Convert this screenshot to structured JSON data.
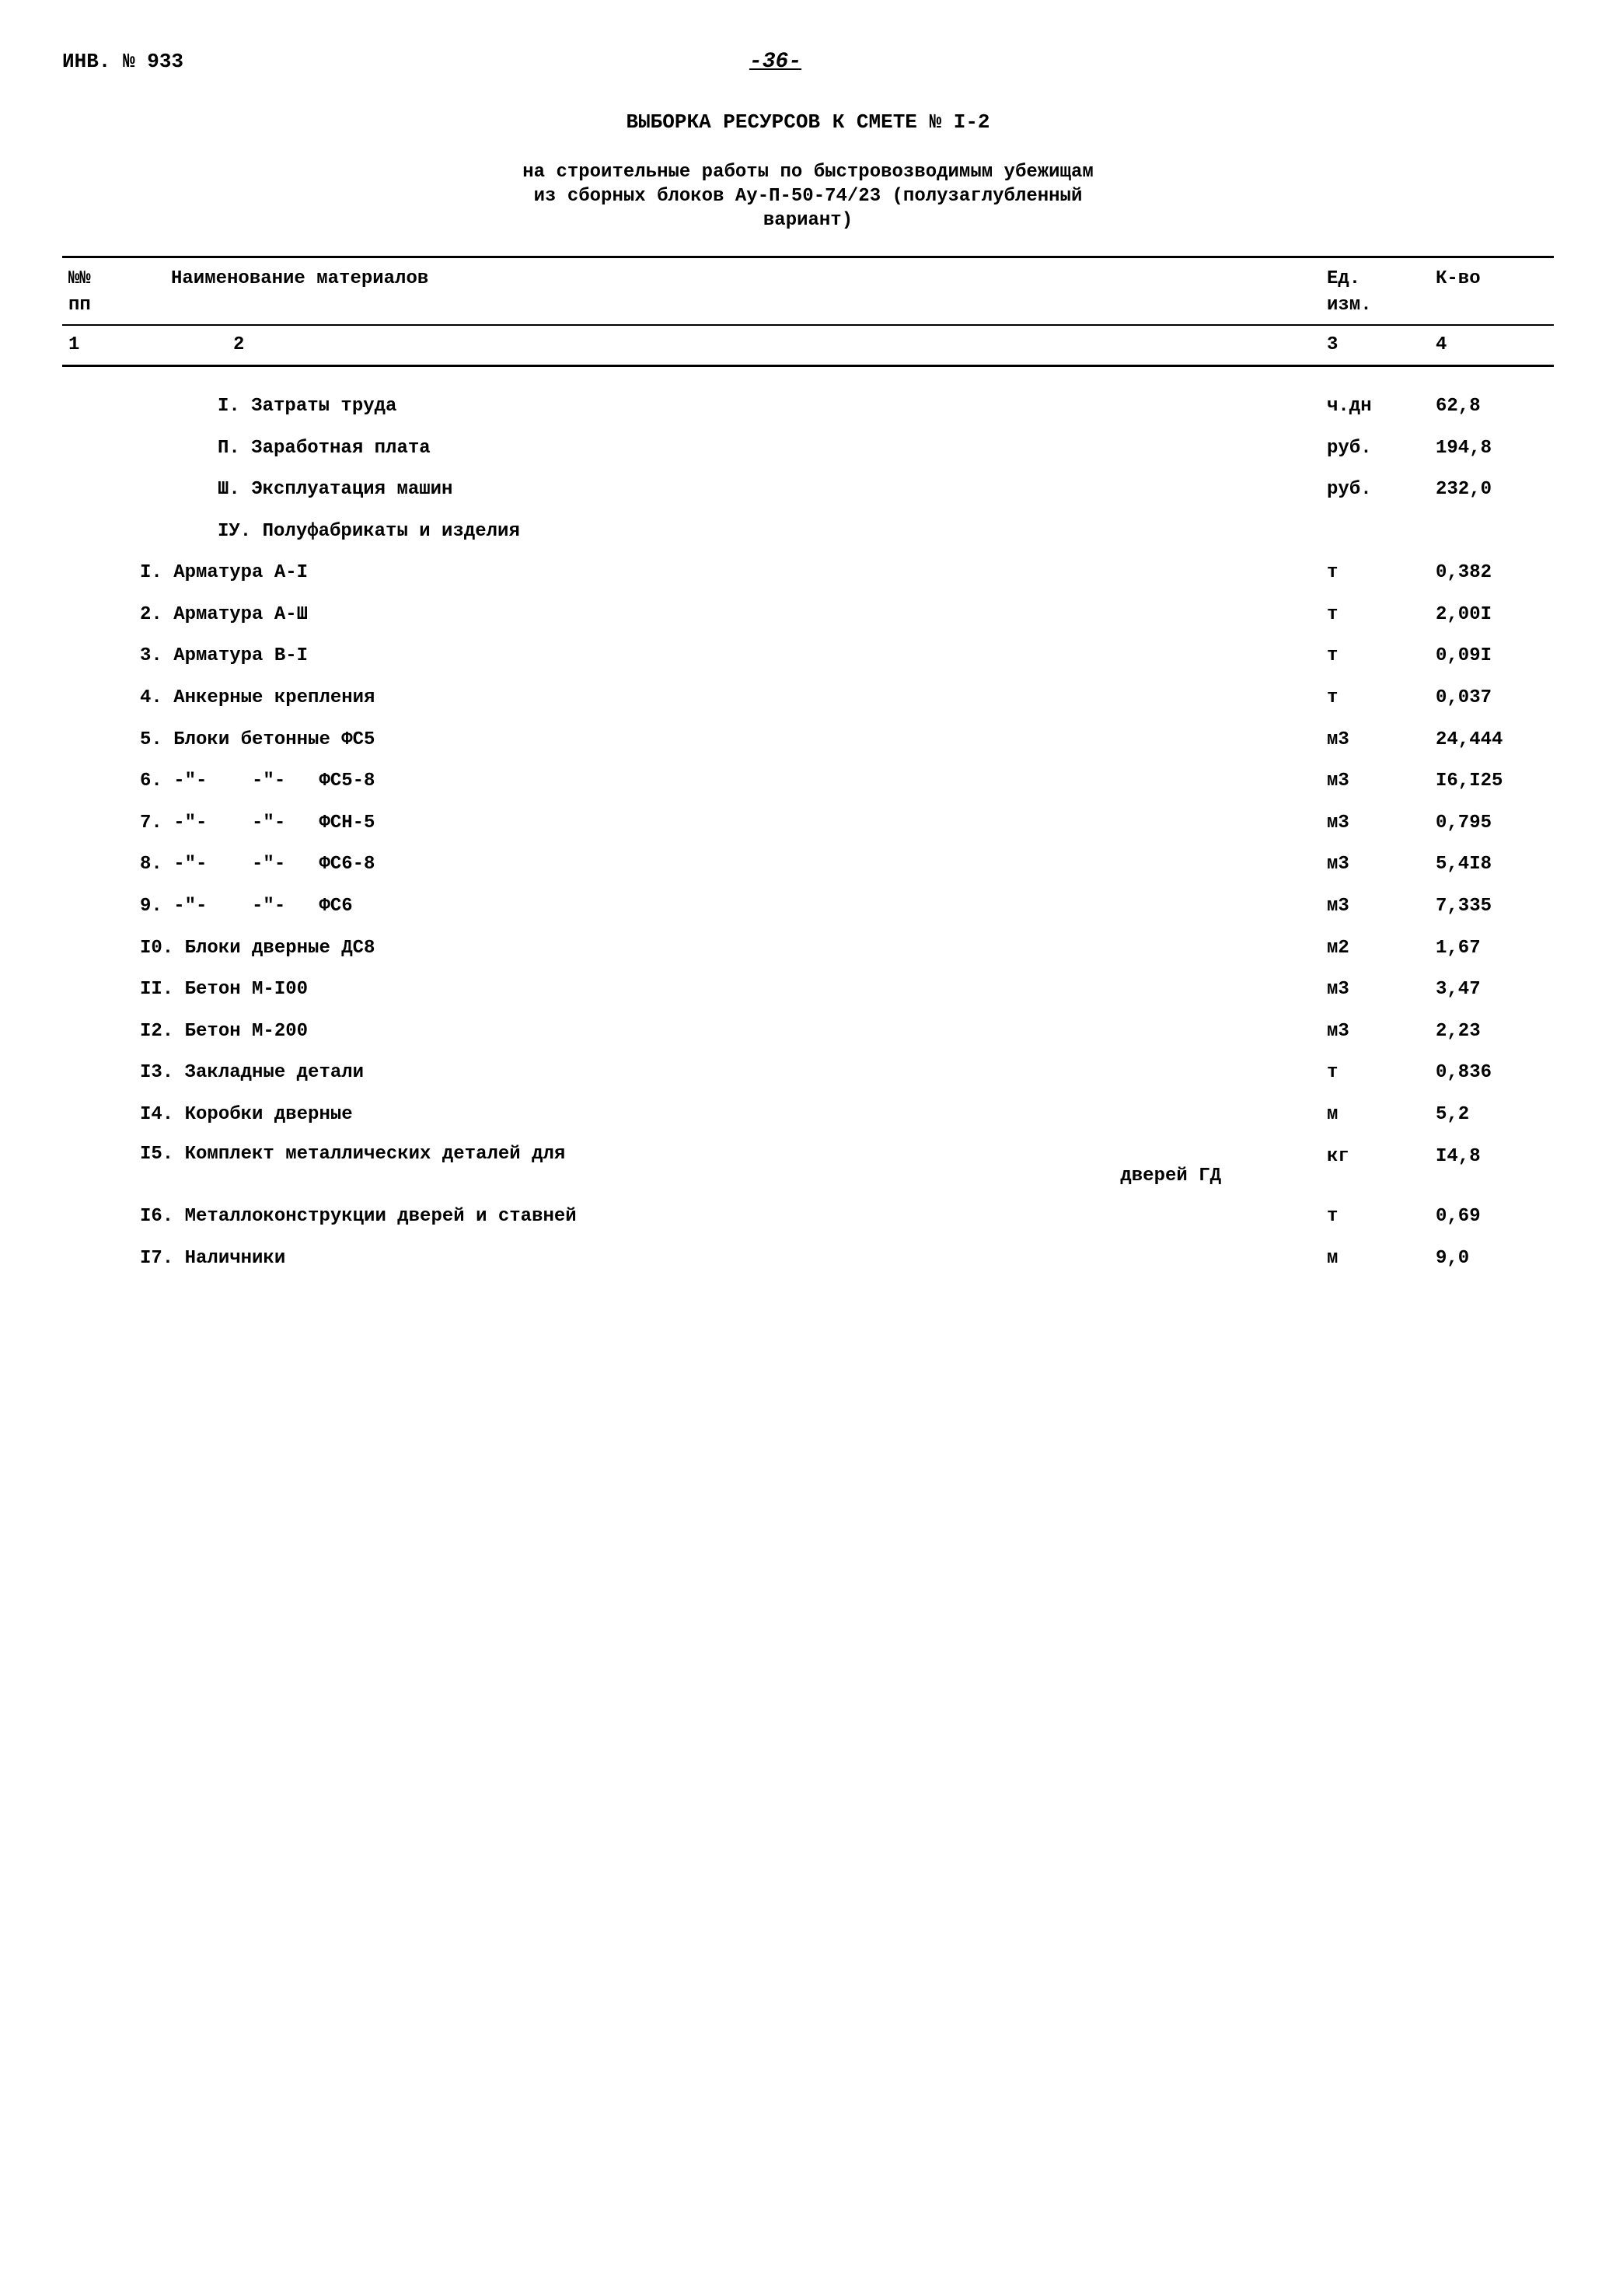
{
  "header": {
    "inv_label": "ИНВ. № 933",
    "page_num": "-36-"
  },
  "title": "ВЫБОРКА РЕСУРСОВ К СМЕТЕ № I-2",
  "subtitle_line1": "на строительные работы по быстровозводимым убежищам",
  "subtitle_line2": "из сборных блоков Ау-П-50-74/23 (полузаглубленный",
  "subtitle_line3": "вариант)",
  "table": {
    "columns": {
      "num_header": "№№\nпп",
      "name_header": "Наименование материалов",
      "unit_header": "Ед.\nизм.",
      "qty_header": "К-во",
      "num_col": "1",
      "name_col": "2",
      "unit_col": "3",
      "qty_col": "4"
    },
    "sections": [
      {
        "name": "I. Затраты труда",
        "unit": "ч.дн",
        "qty": "62,8"
      },
      {
        "name": "П. Заработная плата",
        "unit": "руб.",
        "qty": "194,8"
      },
      {
        "name": "Ш. Эксплуатация машин",
        "unit": "руб.",
        "qty": "232,0"
      },
      {
        "name": "IУ. Полуфабрикаты и изделия",
        "unit": "",
        "qty": ""
      }
    ],
    "items": [
      {
        "name": "I. Арматура А-I",
        "unit": "т",
        "qty": "0,382"
      },
      {
        "name": "2. Арматура А-Ш",
        "unit": "т",
        "qty": "2,00I"
      },
      {
        "name": "3. Арматура В-I",
        "unit": "т",
        "qty": "0,09I"
      },
      {
        "name": "4. Анкерные крепления",
        "unit": "т",
        "qty": "0,037"
      },
      {
        "name": "5. Блоки бетонные ФС5",
        "unit": "м3",
        "qty": "24,444"
      },
      {
        "name": "6. -\"-    -\"-   ФС5-8",
        "unit": "м3",
        "qty": "I6,I25"
      },
      {
        "name": "7. -\"-    -\"-   ФСН-5",
        "unit": "м3",
        "qty": "0,795"
      },
      {
        "name": "8. -\"-    -\"-   ФС6-8",
        "unit": "м3",
        "qty": "5,4I8"
      },
      {
        "name": "9. -\"-    -\"-   ФС6",
        "unit": "м3",
        "qty": "7,335"
      },
      {
        "name": "I0. Блоки дверные ДС8",
        "unit": "м2",
        "qty": "1,67"
      },
      {
        "name": "II. Бетон М-I00",
        "unit": "м3",
        "qty": "3,47"
      },
      {
        "name": "I2. Бетон М-200",
        "unit": "м3",
        "qty": "2,23"
      },
      {
        "name": "I3. Закладные детали",
        "unit": "т",
        "qty": "0,836"
      },
      {
        "name": "I4. Коробки дверные",
        "unit": "м",
        "qty": "5,2"
      },
      {
        "name_line1": "I5. Комплект металлических деталей для",
        "name_line2": "дверей ГД",
        "unit": "кг",
        "qty": "I4,8"
      },
      {
        "name": "I6. Металлоконструкции дверей и ставней",
        "unit": "т",
        "qty": "0,69"
      },
      {
        "name": "I7. Наличники",
        "unit": "м",
        "qty": "9,0"
      }
    ]
  }
}
